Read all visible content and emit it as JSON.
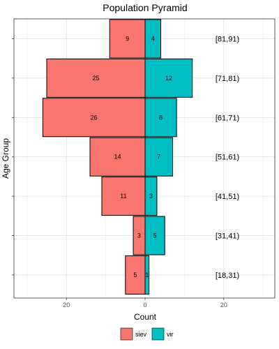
{
  "chart_data": {
    "type": "bar",
    "orientation": "horizontal-diverging",
    "title": "Population Pyramid",
    "xlabel": "Count",
    "ylabel": "Age Group",
    "xlim": [
      -32,
      32
    ],
    "x_ticks": [
      -20,
      0,
      20
    ],
    "x_tick_labels": [
      "20",
      "0",
      "20"
    ],
    "categories": [
      "[18,31)",
      "[31,41)",
      "[41,51)",
      "[51,61)",
      "[61,71)",
      "[71,81)",
      "[81,91)"
    ],
    "series": [
      {
        "name": "siev",
        "color": "#F8766D",
        "side": "left",
        "values": [
          5,
          3,
          11,
          14,
          26,
          25,
          9
        ]
      },
      {
        "name": "vir",
        "color": "#00BFC4",
        "side": "right",
        "values": [
          1,
          5,
          3,
          7,
          8,
          12,
          4
        ]
      }
    ],
    "grid": true,
    "legend_position": "bottom",
    "data_labels": true
  }
}
